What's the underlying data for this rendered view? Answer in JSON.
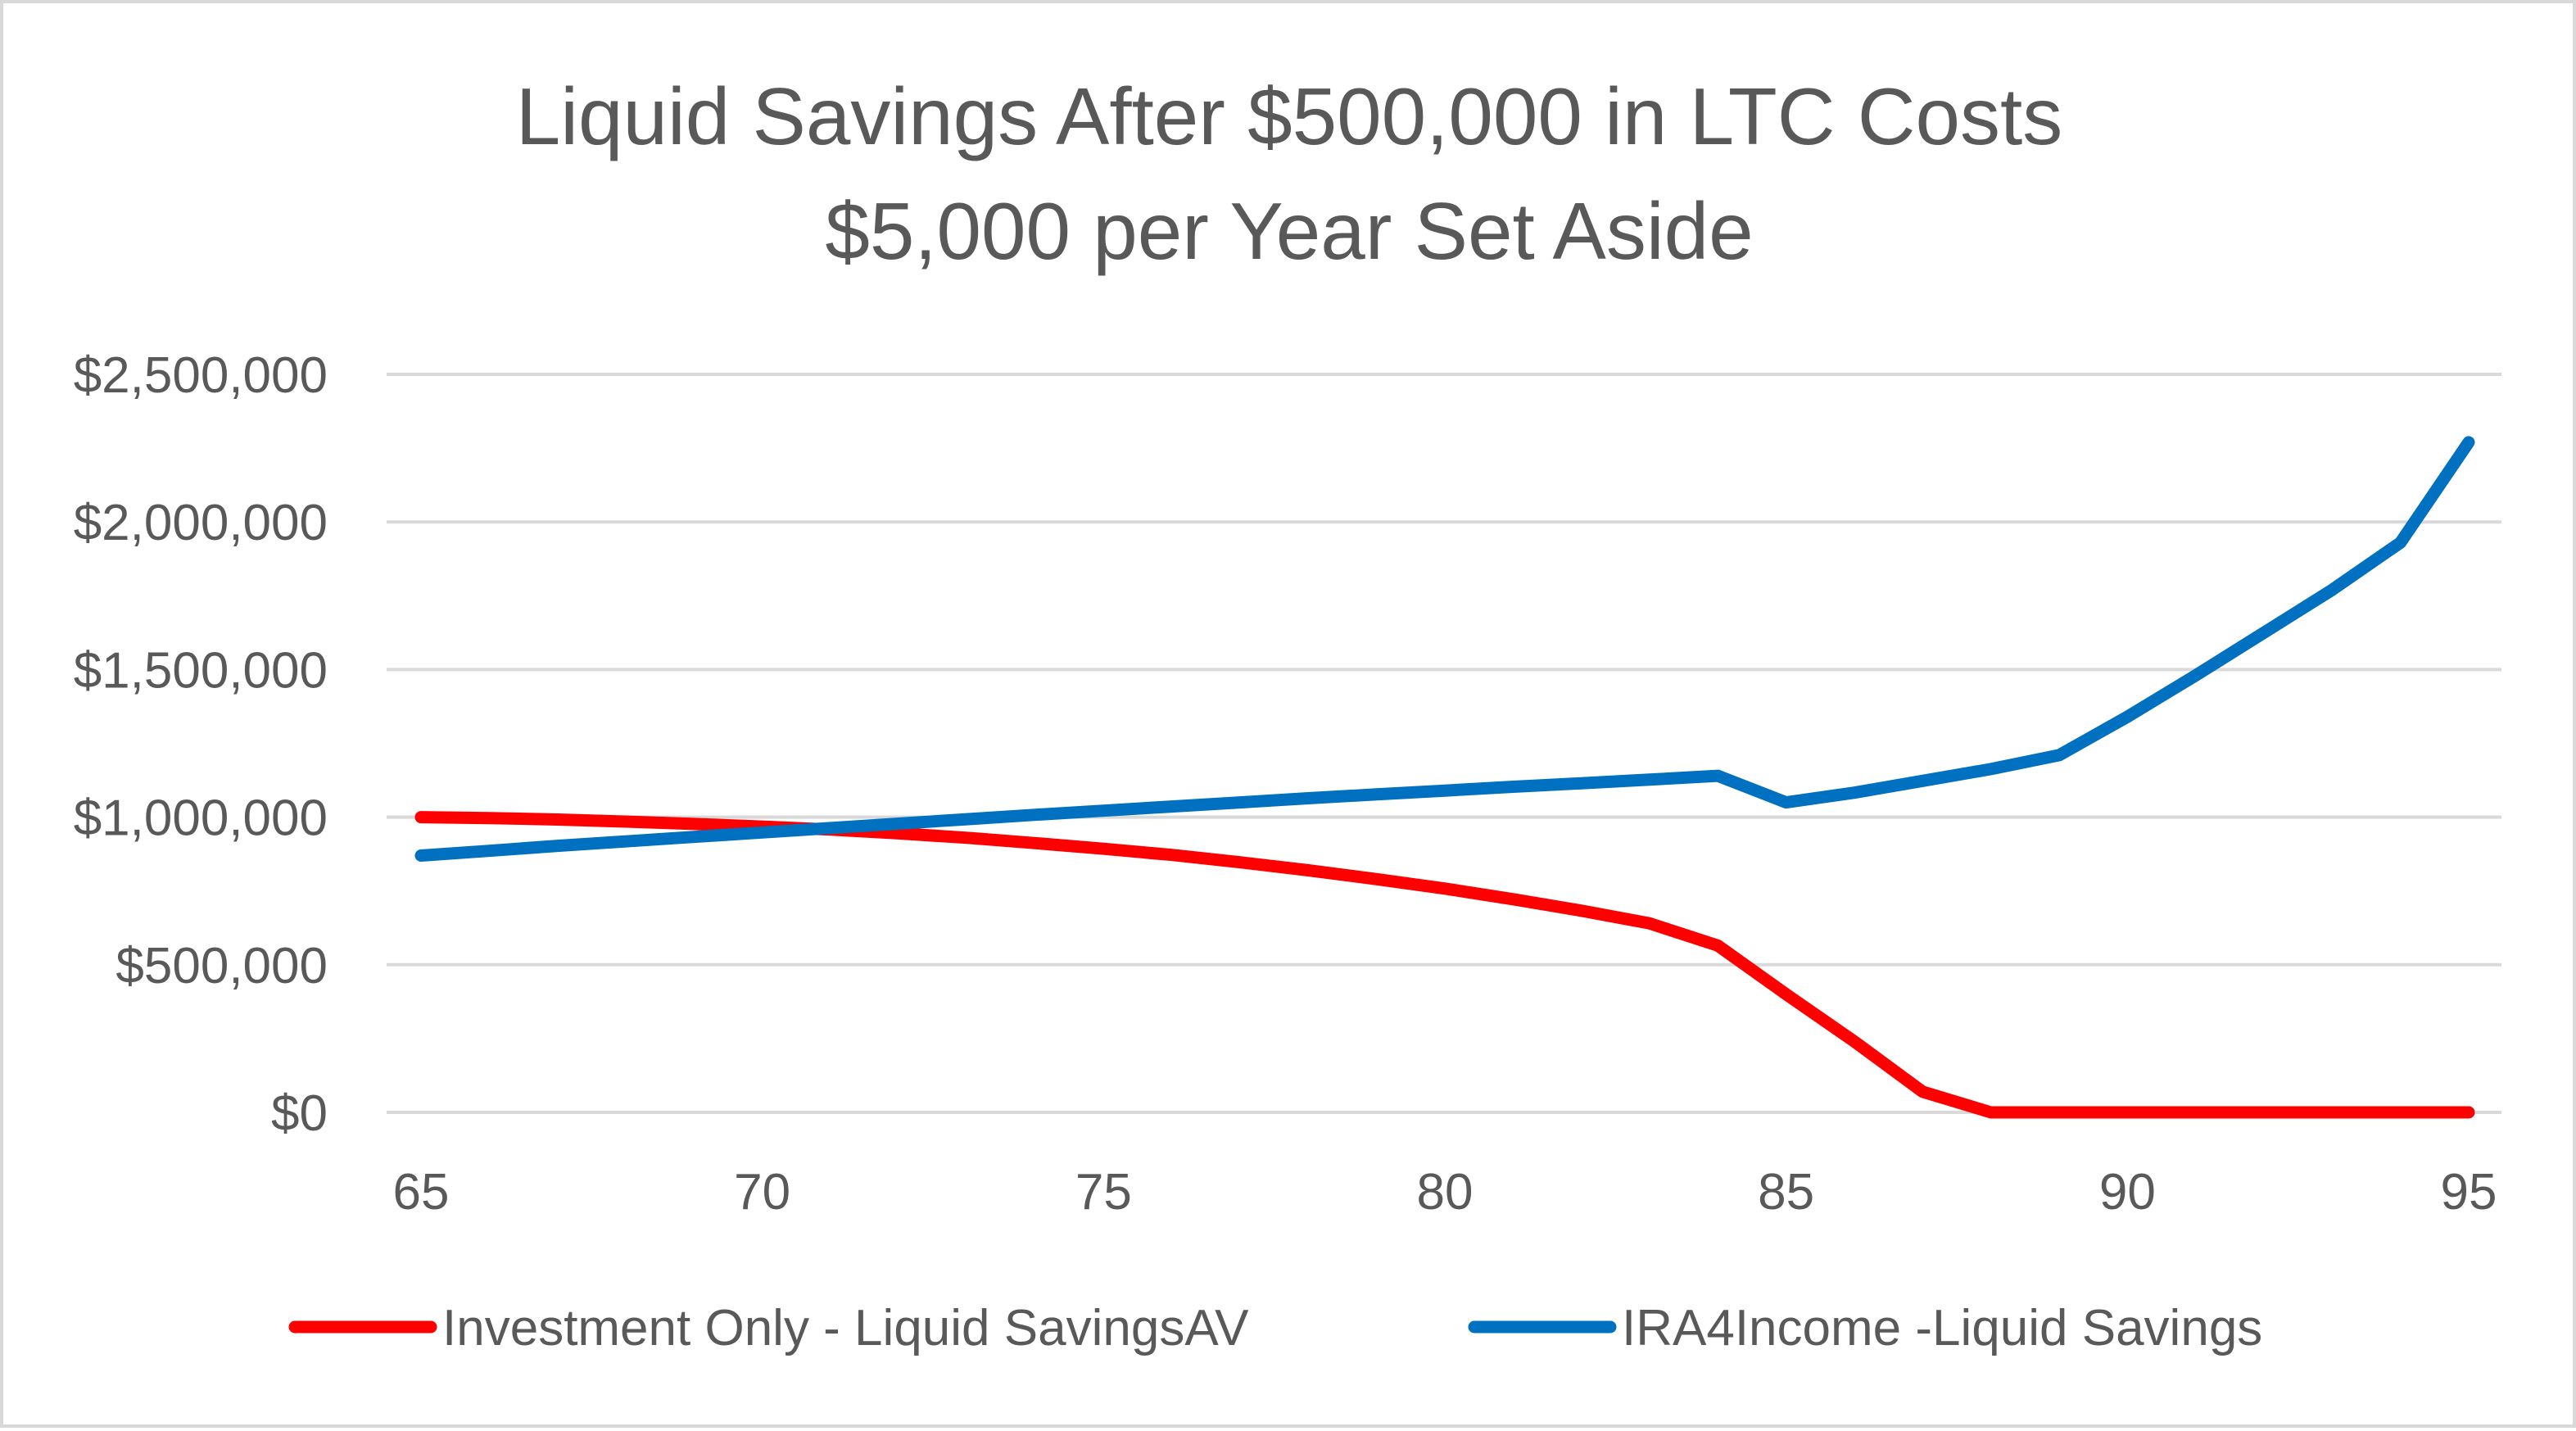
{
  "chart_data": {
    "type": "line",
    "title": "Liquid Savings After $500,000 in LTC Costs",
    "subtitle": "$5,000 per Year Set Aside",
    "xlabel": "",
    "ylabel": "",
    "xlim": [
      65,
      95
    ],
    "ylim": [
      0,
      2500000
    ],
    "x_ticks": [
      65,
      70,
      75,
      80,
      85,
      90,
      95
    ],
    "x_tick_labels": [
      "65",
      "70",
      "75",
      "80",
      "85",
      "90",
      "95"
    ],
    "y_ticks": [
      0,
      500000,
      1000000,
      1500000,
      2000000,
      2500000
    ],
    "y_tick_labels": [
      "$0",
      "$500,000",
      "$1,000,000",
      "$1,500,000",
      "$2,000,000",
      "$2,500,000"
    ],
    "grid": true,
    "legend_position": "bottom",
    "x": [
      65,
      66,
      67,
      68,
      69,
      70,
      71,
      72,
      73,
      74,
      75,
      76,
      77,
      78,
      79,
      80,
      81,
      82,
      83,
      84,
      85,
      86,
      87,
      88,
      89,
      90,
      91,
      92,
      93,
      94,
      95
    ],
    "series": [
      {
        "name": "Investment  Only - Liquid SavingsAV",
        "color": "#ff0000",
        "values": [
          1000000,
          997000,
          992000,
          985000,
          977000,
          968000,
          958000,
          945000,
          930000,
          912000,
          893000,
          872000,
          847000,
          820000,
          790000,
          758000,
          722000,
          683000,
          640000,
          565000,
          400000,
          240000,
          70000,
          0,
          0,
          0,
          0,
          0,
          0,
          0,
          0
        ]
      },
      {
        "name": "IRA4Income -Liquid Savings",
        "color": "#0070c0",
        "values": [
          870000,
          886000,
          903000,
          918000,
          933000,
          948000,
          963000,
          978000,
          993000,
          1008000,
          1022000,
          1036000,
          1050000,
          1064000,
          1077000,
          1090000,
          1103000,
          1115000,
          1127000,
          1140000,
          1050000,
          1083000,
          1123000,
          1163000,
          1210000,
          1340000,
          1480000,
          1625000,
          1770000,
          1930000,
          2270000
        ]
      }
    ]
  }
}
